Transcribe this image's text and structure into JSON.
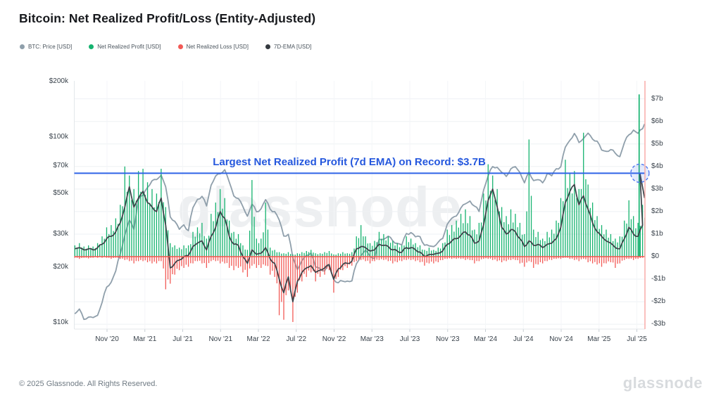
{
  "title": "Bitcoin: Net Realized Profit/Loss (Entity-Adjusted)",
  "legend": [
    {
      "label": "BTC: Price [USD]",
      "color": "#8f9fab"
    },
    {
      "label": "Net Realized Profit [USD]",
      "color": "#15b36f"
    },
    {
      "label": "Net Realized Loss [USD]",
      "color": "#f25a56"
    },
    {
      "label": "7D-EMA [USD]",
      "color": "#34393f"
    }
  ],
  "annotation": {
    "text": "Largest Net Realized Profit (7d EMA) on Record: $3.7B",
    "color": "#2457dd"
  },
  "watermark": "glassnode",
  "footer": {
    "copyright": "© 2025 Glassnode. All Rights Reserved.",
    "brand": "glassnode"
  },
  "colors": {
    "price": "#8f9fab",
    "profit": "#15b36f",
    "loss": "#f25a56",
    "ema": "#3b4147",
    "record_line": "#2f63e7",
    "zero_line": "#f4544f",
    "latest_edge_line": "#f8aba8",
    "grid": "#eef1f4",
    "grid_vertical": "#f4f6f8",
    "axis_border": "#e3e7ea",
    "highlight_fill": "rgba(79,118,241,0.15)",
    "highlight_stroke": "#4d76f0"
  },
  "chart_data": {
    "type": "line",
    "title": "Bitcoin: Net Realized Profit/Loss (Entity-Adjusted)",
    "x": {
      "start": 2020.55,
      "step": 0.04,
      "count": 126,
      "tick_labels": [
        "Nov '20",
        "Mar '21",
        "Jul '21",
        "Nov '21",
        "Mar '22",
        "Jul '22",
        "Nov '22",
        "Mar '23",
        "Jul '23",
        "Nov '23",
        "Mar '24",
        "Jul '24",
        "Nov '24",
        "Mar '25",
        "Jul '25"
      ],
      "tick_positions": [
        2020.8333,
        2021.1667,
        2021.5,
        2021.8333,
        2022.1667,
        2022.5,
        2022.8333,
        2023.1667,
        2023.5,
        2023.8333,
        2024.1667,
        2024.5,
        2024.8333,
        2025.1667,
        2025.5
      ]
    },
    "y_left": {
      "scale": "log",
      "unit": "USD",
      "tick_labels": [
        "$200k",
        "$100k",
        "$70k",
        "$50k",
        "$30k",
        "$20k",
        "$10k"
      ],
      "tick_values_thousands": [
        200,
        100,
        70,
        50,
        30,
        20,
        10
      ]
    },
    "y_right": {
      "scale": "linear",
      "unit": "USD billions",
      "tick_labels": [
        "$7b",
        "$6b",
        "$5b",
        "$4b",
        "$3b",
        "$2b",
        "$1b",
        "$0",
        "-$1b",
        "-$2b",
        "-$3b"
      ],
      "tick_values_billions": [
        7,
        6,
        5,
        4,
        3,
        2,
        1,
        0,
        -1,
        -2,
        -3
      ]
    },
    "series": [
      {
        "name": "BTC: Price [USD]",
        "axis": "left",
        "style": "line",
        "unit": "USD thousands",
        "values": [
          11.2,
          11.8,
          10.5,
          10.8,
          10.6,
          11.0,
          13.0,
          15.5,
          16.5,
          19.2,
          23.5,
          29.5,
          36,
          32,
          46,
          49,
          54,
          58,
          59,
          63,
          54,
          37,
          35.5,
          32,
          33.5,
          31.5,
          42,
          46,
          48,
          43,
          55,
          61.5,
          64,
          67,
          57,
          48.5,
          47,
          42,
          37.5,
          44,
          39.5,
          41,
          46.5,
          41,
          39.5,
          36,
          29.5,
          29.8,
          22.5,
          19.5,
          21.5,
          23,
          24,
          20,
          19.5,
          19.2,
          20.5,
          17,
          16.5,
          16.9,
          16.7,
          16.8,
          21,
          23,
          24.5,
          23,
          22.3,
          28,
          28.3,
          29.5,
          27.5,
          26.8,
          26.5,
          30.2,
          30.5,
          29.3,
          29.2,
          26,
          26.1,
          25.9,
          27,
          28.5,
          34.2,
          36.5,
          37.5,
          42,
          43.8,
          45,
          42.8,
          40,
          51.5,
          62,
          70,
          68.5,
          64.5,
          62,
          67.5,
          69,
          65,
          57,
          64.5,
          58.5,
          59.5,
          56.5,
          63.5,
          62.5,
          67.5,
          69,
          89,
          96.5,
          104,
          94,
          99,
          104.5,
          97.5,
          96,
          85,
          83.5,
          86.5,
          82,
          78,
          94,
          103.5,
          108.5,
          105,
          112
        ]
      },
      {
        "name": "Net Realized Profit [USD]",
        "axis": "right",
        "style": "spikes-up",
        "unit": "USD billions",
        "values": [
          0.5,
          0.6,
          0.45,
          0.5,
          0.45,
          0.6,
          0.9,
          1.3,
          1.4,
          1.7,
          2.3,
          4.0,
          3.6,
          3.0,
          3.8,
          3.9,
          3.3,
          3.0,
          2.8,
          3.9,
          2.2,
          0.6,
          0.5,
          0.4,
          0.5,
          0.5,
          1.1,
          1.3,
          1.5,
          0.8,
          1.9,
          2.4,
          3.0,
          2.6,
          1.6,
          1.1,
          1.0,
          0.5,
          0.3,
          3.4,
          0.8,
          0.8,
          2.4,
          0.4,
          0.3,
          0.2,
          0.15,
          0.2,
          0.1,
          0.15,
          0.2,
          0.25,
          0.3,
          0.15,
          0.15,
          0.2,
          0.25,
          0.1,
          0.15,
          0.2,
          0.15,
          0.2,
          0.9,
          1.4,
          0.9,
          0.6,
          0.7,
          1.1,
          1.0,
          0.9,
          0.7,
          0.6,
          0.5,
          0.9,
          0.8,
          0.6,
          0.5,
          0.3,
          0.4,
          0.3,
          0.4,
          0.6,
          1.2,
          1.4,
          1.6,
          1.9,
          2.1,
          1.8,
          1.2,
          1.5,
          2.8,
          4.1,
          3.6,
          3.0,
          2.2,
          1.8,
          2.1,
          1.9,
          1.5,
          1.0,
          5.2,
          1.2,
          1.1,
          0.8,
          1.1,
          1.2,
          1.6,
          2.6,
          4.3,
          3.7,
          3.8,
          3.0,
          5.5,
          3.2,
          2.4,
          1.8,
          1.4,
          1.2,
          1.0,
          0.8,
          0.9,
          1.6,
          2.5,
          1.8,
          1.5,
          2.3
        ]
      },
      {
        "name": "Net Realized Loss [USD]",
        "axis": "right",
        "style": "spikes-down",
        "unit": "USD billions",
        "values": [
          -0.05,
          -0.1,
          -0.05,
          -0.08,
          -0.05,
          -0.05,
          -0.05,
          -0.05,
          -0.1,
          -0.05,
          -0.1,
          -0.15,
          -0.2,
          -0.3,
          -0.2,
          -0.2,
          -0.25,
          -0.3,
          -0.3,
          -0.2,
          -1.45,
          -1.2,
          -0.8,
          -0.6,
          -0.5,
          -0.45,
          -0.3,
          -0.2,
          -0.3,
          -0.5,
          -0.2,
          -0.2,
          -0.3,
          -0.3,
          -0.5,
          -0.6,
          -0.5,
          -0.7,
          -0.9,
          -0.4,
          -0.5,
          -0.5,
          -0.4,
          -0.8,
          -0.9,
          -2.6,
          -2.8,
          -1.5,
          -2.9,
          -1.6,
          -1.1,
          -0.9,
          -0.7,
          -1.1,
          -0.9,
          -0.8,
          -0.6,
          -1.6,
          -0.9,
          -0.6,
          -0.5,
          -0.4,
          -0.2,
          -0.15,
          -0.2,
          -0.3,
          -0.2,
          -0.15,
          -0.15,
          -0.2,
          -0.3,
          -0.25,
          -0.2,
          -0.15,
          -0.15,
          -0.2,
          -0.25,
          -0.4,
          -0.3,
          -0.3,
          -0.25,
          -0.15,
          -0.1,
          -0.1,
          -0.1,
          -0.1,
          -0.15,
          -0.15,
          -0.3,
          -0.2,
          -0.1,
          -0.1,
          -0.15,
          -0.2,
          -0.25,
          -0.2,
          -0.15,
          -0.15,
          -0.3,
          -0.45,
          -0.2,
          -0.5,
          -0.35,
          -0.3,
          -0.2,
          -0.15,
          -0.1,
          -0.1,
          -0.05,
          -0.1,
          -0.15,
          -0.2,
          -0.1,
          -0.25,
          -0.3,
          -0.35,
          -0.45,
          -0.3,
          -0.25,
          -0.5,
          -0.3,
          -0.15,
          -0.1,
          -0.15,
          -0.1,
          -0.05
        ]
      },
      {
        "name": "7D-EMA [USD]",
        "axis": "right",
        "style": "line",
        "unit": "USD billions",
        "values": [
          0.35,
          0.4,
          0.3,
          0.35,
          0.3,
          0.4,
          0.55,
          0.8,
          0.9,
          1.1,
          1.5,
          2.2,
          3.1,
          2.2,
          2.6,
          2.9,
          2.4,
          2.2,
          2.0,
          2.6,
          1.4,
          -0.5,
          -0.3,
          -0.15,
          0.0,
          0.05,
          0.45,
          0.6,
          0.7,
          0.3,
          0.9,
          1.3,
          2.0,
          1.7,
          0.9,
          0.55,
          0.5,
          0.0,
          -0.3,
          0.3,
          0.1,
          0.15,
          0.4,
          -0.1,
          -0.3,
          -1.0,
          -1.6,
          -0.9,
          -2.0,
          -1.1,
          -0.7,
          -0.5,
          -0.4,
          -0.7,
          -0.6,
          -0.5,
          -0.35,
          -1.0,
          -0.55,
          -0.35,
          -0.3,
          -0.2,
          0.35,
          0.45,
          0.4,
          0.25,
          0.3,
          0.55,
          0.5,
          0.45,
          0.3,
          0.25,
          0.2,
          0.4,
          0.4,
          0.3,
          0.2,
          0.0,
          0.1,
          0.1,
          0.15,
          0.25,
          0.55,
          0.7,
          0.8,
          0.95,
          1.1,
          0.95,
          0.6,
          0.7,
          1.4,
          2.5,
          3.0,
          2.2,
          1.3,
          1.0,
          1.2,
          1.1,
          0.8,
          0.45,
          0.7,
          0.5,
          0.55,
          0.4,
          0.55,
          0.6,
          0.8,
          1.3,
          2.4,
          2.9,
          3.2,
          2.3,
          2.7,
          2.1,
          1.5,
          1.1,
          0.9,
          0.7,
          0.6,
          0.4,
          0.35,
          0.8,
          1.3,
          1.0,
          0.9,
          1.4
        ]
      }
    ],
    "endpoint": {
      "t": 2025.568,
      "price_k": 118,
      "profit_spike_b": 7.2,
      "profit_spike_t": 2025.52,
      "ema_peak_b": 3.7,
      "ema_peak_t": 2025.527,
      "ema_end_b": 2.6
    },
    "record_line": {
      "value_b": 3.7,
      "label": "Largest Net Realized Profit (7d EMA) on Record: $3.7B"
    },
    "zero_line": {
      "value_b": 0
    },
    "highlight_circle": {
      "t": 2025.527,
      "value_b": 3.7
    },
    "legend_position": "top-left",
    "grid": true
  }
}
